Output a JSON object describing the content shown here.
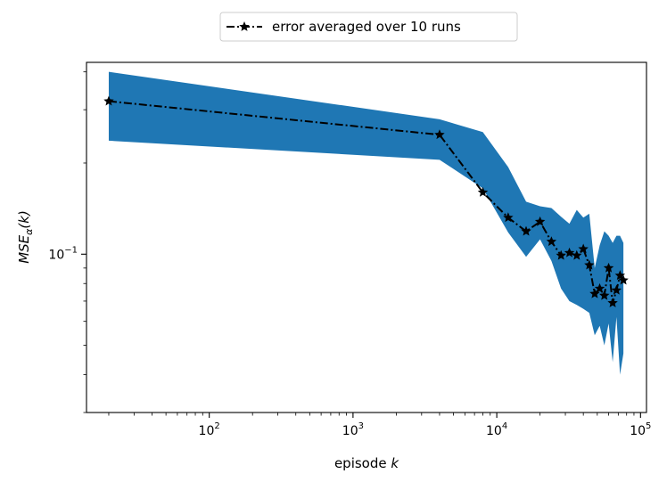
{
  "chart_data": {
    "type": "line",
    "title": "",
    "xlabel": "episode k",
    "ylabel": "MSE_α(k)",
    "xscale": "log",
    "yscale": "log",
    "xlim": [
      14,
      110000
    ],
    "ylim": [
      0.03,
      0.43
    ],
    "grid": false,
    "legend_position": "top-center, above plot",
    "x_ticks": [
      {
        "value": 100,
        "base": "10",
        "exp": "2"
      },
      {
        "value": 1000,
        "base": "10",
        "exp": "3"
      },
      {
        "value": 10000,
        "base": "10",
        "exp": "4"
      },
      {
        "value": 100000,
        "base": "10",
        "exp": "5"
      }
    ],
    "y_ticks": [
      {
        "value": 0.1,
        "base": "10",
        "exp": "−1"
      }
    ],
    "band_color": "#1f77b4",
    "line_color": "#000000",
    "series": [
      {
        "name": "error averaged over 10 runs",
        "x": [
          20,
          4000,
          8000,
          12000,
          16000,
          20000,
          24000,
          28000,
          32000,
          36000,
          40000,
          44000,
          48000,
          52000,
          56000,
          60000,
          64000,
          68000,
          72000,
          76000
        ],
        "y": [
          0.32,
          0.248,
          0.16,
          0.132,
          0.119,
          0.128,
          0.11,
          0.099,
          0.101,
          0.099,
          0.104,
          0.092,
          0.074,
          0.077,
          0.073,
          0.09,
          0.069,
          0.076,
          0.085,
          0.082
        ],
        "lower": [
          0.237,
          0.205,
          0.165,
          0.118,
          0.098,
          0.112,
          0.095,
          0.077,
          0.07,
          0.068,
          0.066,
          0.064,
          0.054,
          0.058,
          0.05,
          0.059,
          0.044,
          0.062,
          0.04,
          0.047
        ],
        "upper": [
          0.4,
          0.279,
          0.253,
          0.194,
          0.149,
          0.144,
          0.142,
          0.133,
          0.126,
          0.14,
          0.132,
          0.136,
          0.09,
          0.107,
          0.119,
          0.115,
          0.109,
          0.115,
          0.115,
          0.109
        ]
      }
    ]
  }
}
